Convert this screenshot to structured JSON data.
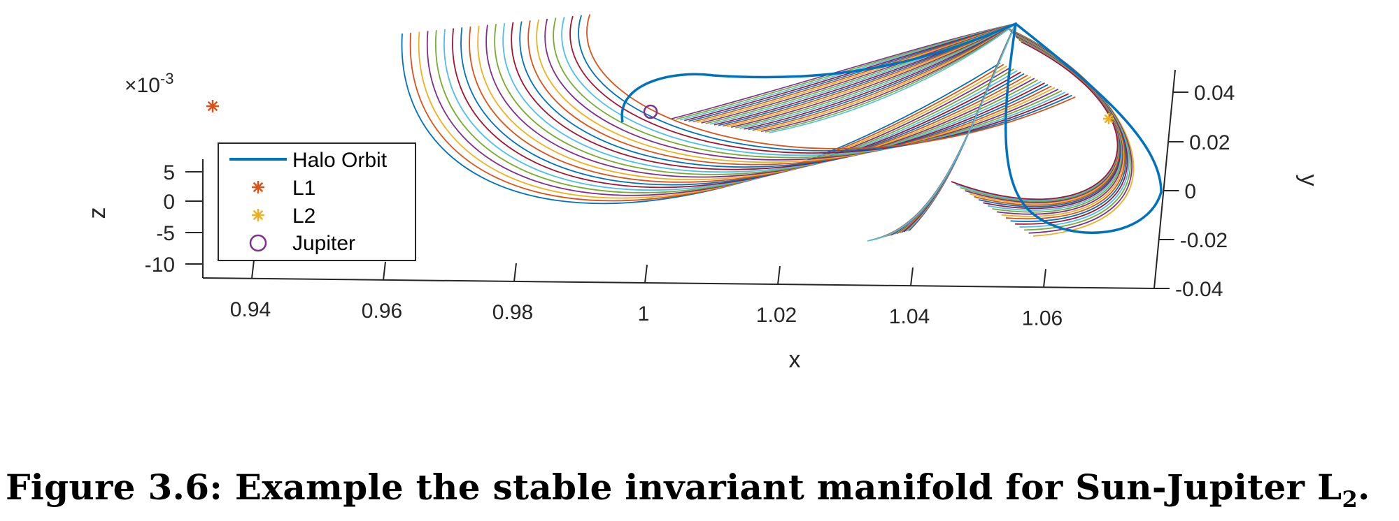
{
  "caption": {
    "label": "Figure 3.6:",
    "text": "Example the stable invariant manifold for Sun-Jupiter L",
    "subscript": "2",
    "end": "."
  },
  "chart_data": {
    "type": "line",
    "title": "",
    "xlabel": "x",
    "ylabel": "y",
    "zlabel": "z",
    "z_multiplier": "×10",
    "z_multiplier_exp": "-3",
    "x_ticks": [
      "0.94",
      "0.96",
      "0.98",
      "1",
      "1.02",
      "1.04",
      "1.06"
    ],
    "y_ticks": [
      "0.04",
      "0.02",
      "0",
      "-0.02",
      "-0.04"
    ],
    "z_ticks": [
      "5",
      "0",
      "-5",
      "-10"
    ],
    "xlim": [
      0.93,
      1.08
    ],
    "ylim": [
      -0.04,
      0.045
    ],
    "zlim": [
      -10,
      8
    ],
    "legend": {
      "placement": "left",
      "entries": [
        {
          "label": "Halo Orbit",
          "marker": "line",
          "color": "#0072BD"
        },
        {
          "label": "L1",
          "marker": "asterisk",
          "color": "#D95319"
        },
        {
          "label": "L2",
          "marker": "asterisk",
          "color": "#EDB120"
        },
        {
          "label": "Jupiter",
          "marker": "circle",
          "color": "#7E2F8E"
        }
      ]
    },
    "points": [
      {
        "name": "L1",
        "x": 0.9323,
        "y": 0,
        "z": 0,
        "color": "#D95319"
      },
      {
        "name": "L2",
        "x": 1.0688,
        "y": 0,
        "z": 0,
        "color": "#EDB120"
      },
      {
        "name": "Jupiter",
        "x": 0.999,
        "y": 0,
        "z": 0,
        "color": "#7E2F8E"
      }
    ],
    "series_colors": [
      "#0072BD",
      "#D95319",
      "#EDB120",
      "#7E2F8E",
      "#77AC30",
      "#4DBEEE",
      "#A2142F"
    ],
    "manifold_trajectory_count": 42
  }
}
